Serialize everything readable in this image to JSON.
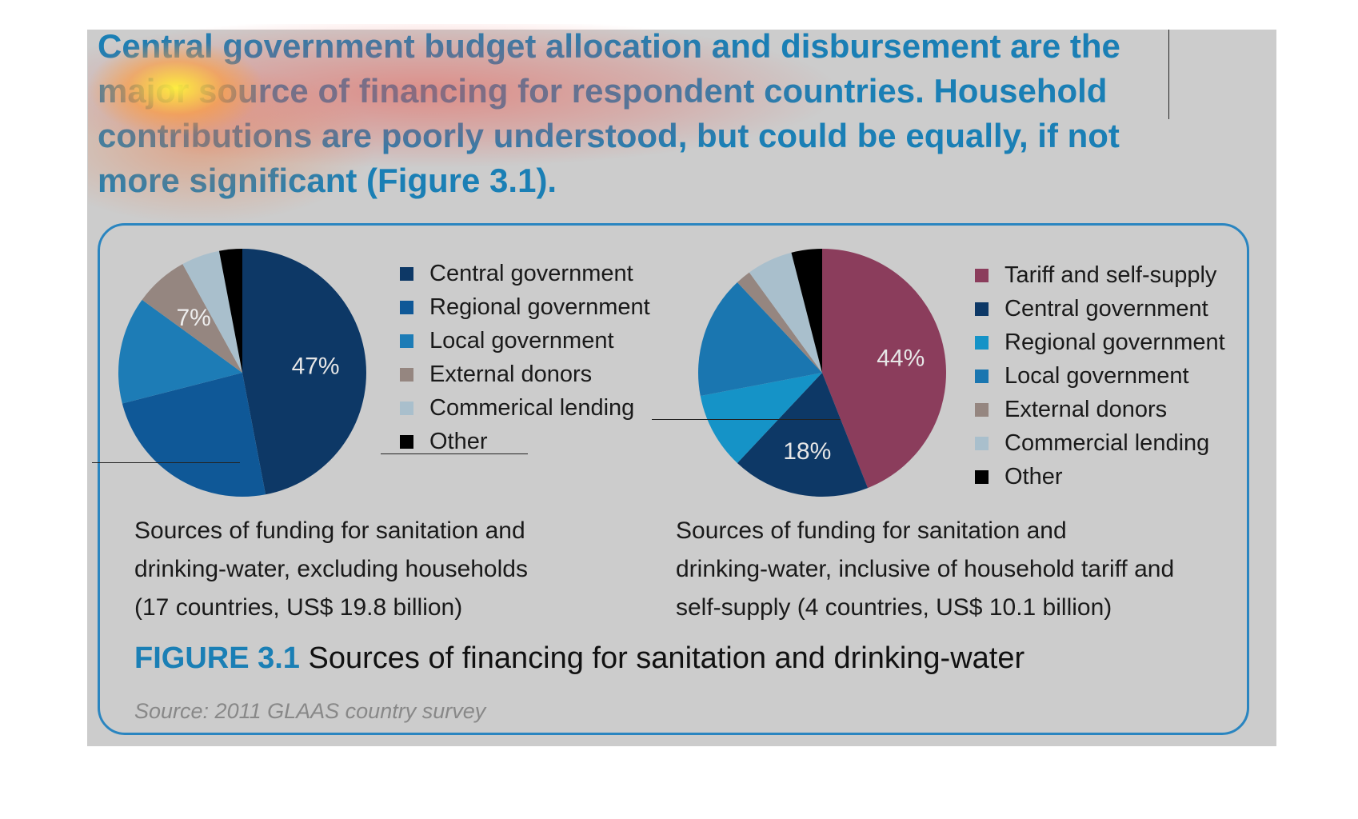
{
  "headline": {
    "lines": [
      "Central government budget allocation and disbursement are the",
      "major source of financing for respondent countries. Household",
      "contributions are poorly understood, but could be equally, if not",
      "more significant (Figure 3.1)."
    ]
  },
  "colors": {
    "background": "#cccccc",
    "headline_blue": "#1a7fb5",
    "frame_blue": "#2a85c0"
  },
  "figure": {
    "label": "FIGURE 3.1",
    "title": "Sources of financing for sanitation and drinking-water",
    "source": "Source: 2011 GLAAS country survey"
  },
  "chart_data": [
    {
      "type": "pie",
      "caption_lines": [
        "Sources of funding for sanitation and",
        "drinking-water, excluding households",
        "(17 countries, US$ 19.8 billion)"
      ],
      "slices": [
        {
          "name": "Central government",
          "value": 47,
          "color": "#0d3866",
          "label": "47%"
        },
        {
          "name": "Regional government",
          "value": 24,
          "color": "#0f5897",
          "label": ""
        },
        {
          "name": "Local government",
          "value": 14,
          "color": "#1d7cb6",
          "label": ""
        },
        {
          "name": "External donors",
          "value": 7,
          "color": "#958680",
          "label": "7%"
        },
        {
          "name": "Commerical lending",
          "value": 5,
          "color": "#a9bfcc",
          "label": ""
        },
        {
          "name": "Other",
          "value": 3,
          "color": "#000000",
          "label": ""
        }
      ]
    },
    {
      "type": "pie",
      "caption_lines": [
        "Sources of funding for sanitation and",
        "drinking-water, inclusive of household tariff and",
        "self-supply (4 countries, US$ 10.1 billion)"
      ],
      "slices": [
        {
          "name": "Tariff and self-supply",
          "value": 44,
          "color": "#8b3d5c",
          "label": "44%"
        },
        {
          "name": "Central government",
          "value": 18,
          "color": "#0d3866",
          "label": "18%"
        },
        {
          "name": "Regional government",
          "value": 10,
          "color": "#1593c7",
          "label": ""
        },
        {
          "name": "Local government",
          "value": 16,
          "color": "#1a76b0",
          "label": ""
        },
        {
          "name": "External donors",
          "value": 2,
          "color": "#958680",
          "label": ""
        },
        {
          "name": "Commercial lending",
          "value": 6,
          "color": "#a9bfcc",
          "label": ""
        },
        {
          "name": "Other",
          "value": 4,
          "color": "#000000",
          "label": ""
        }
      ]
    }
  ]
}
